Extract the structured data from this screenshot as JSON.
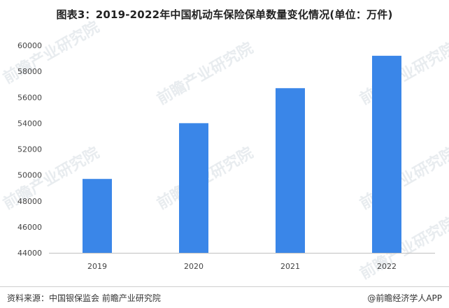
{
  "chart_data": {
    "type": "bar",
    "title": "图表3：2019-2022年中国机动车保险保单数量变化情况(单位：万件)",
    "categories": [
      "2019",
      "2020",
      "2021",
      "2022"
    ],
    "values": [
      49700,
      54000,
      56700,
      59200
    ],
    "ylim": [
      44000,
      60000
    ],
    "yticks": [
      44000,
      46000,
      48000,
      50000,
      52000,
      54000,
      56000,
      58000,
      60000
    ],
    "bar_color": "#3a86e8",
    "grid": false,
    "legend": "none"
  },
  "watermark": {
    "text": "前瞻产业研究院"
  },
  "footer": {
    "source": "资料来源：中国银保监会 前瞻产业研究院",
    "brand": "@前瞻经济学人APP"
  }
}
